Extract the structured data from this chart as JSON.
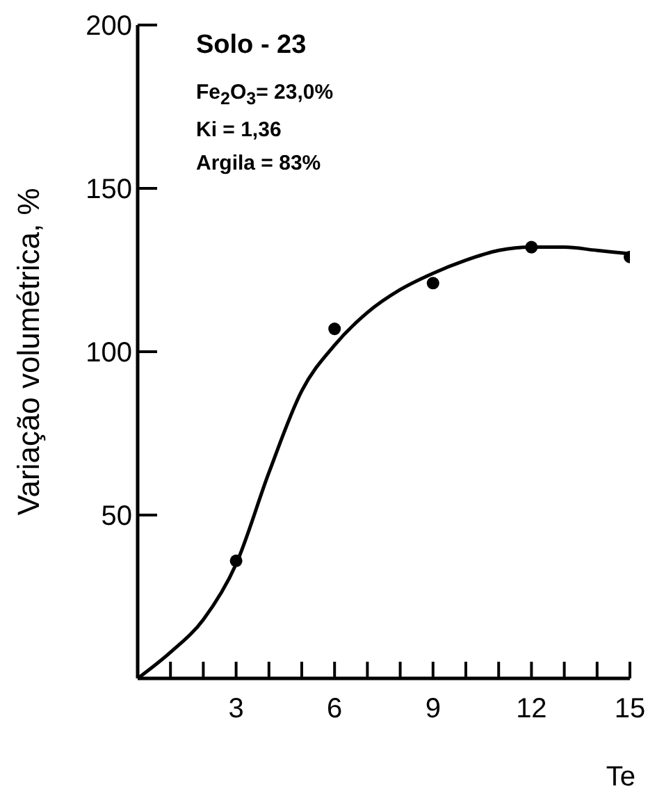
{
  "chart_data": {
    "type": "scatter",
    "xlabel": "Te",
    "ylabel": "Variação volumétrica, %",
    "annotations": [
      "Solo - 23",
      "Fe$_{2}$O$_{3}$= 23,0%",
      "Ki = 1,36",
      "Argila = 83%"
    ],
    "x": [
      3,
      6,
      9,
      12,
      15
    ],
    "series": [
      {
        "color": "#000000",
        "marker": "circle",
        "values": [
          36,
          107,
          121,
          132,
          129
        ]
      },
      {
        "type": "line",
        "color": "#000000",
        "marker": "none",
        "line_style": "solid",
        "x": [
          0,
          1,
          2,
          3,
          4,
          5,
          6,
          7,
          8,
          9,
          10,
          11,
          12,
          13,
          14,
          15
        ],
        "values": [
          0,
          8,
          18,
          35,
          63,
          88,
          102,
          112,
          119,
          124,
          128,
          131,
          132,
          132,
          131,
          130
        ]
      }
    ],
    "xlim": [
      0,
      15
    ],
    "ylim": [
      0,
      200
    ],
    "xticks": [
      {
        "value": 1,
        "label": null
      },
      {
        "value": 2,
        "label": null
      },
      3,
      {
        "value": 4,
        "label": null
      },
      {
        "value": 5,
        "label": null
      },
      6,
      {
        "value": 7,
        "label": null
      },
      {
        "value": 8,
        "label": null
      },
      9,
      {
        "value": 10,
        "label": null
      },
      {
        "value": 11,
        "label": null
      },
      12,
      {
        "value": 13,
        "label": null
      },
      {
        "value": 14,
        "label": null
      },
      15
    ],
    "yticks": [
      50,
      100,
      150,
      200
    ],
    "grid": false,
    "legend": false
  }
}
